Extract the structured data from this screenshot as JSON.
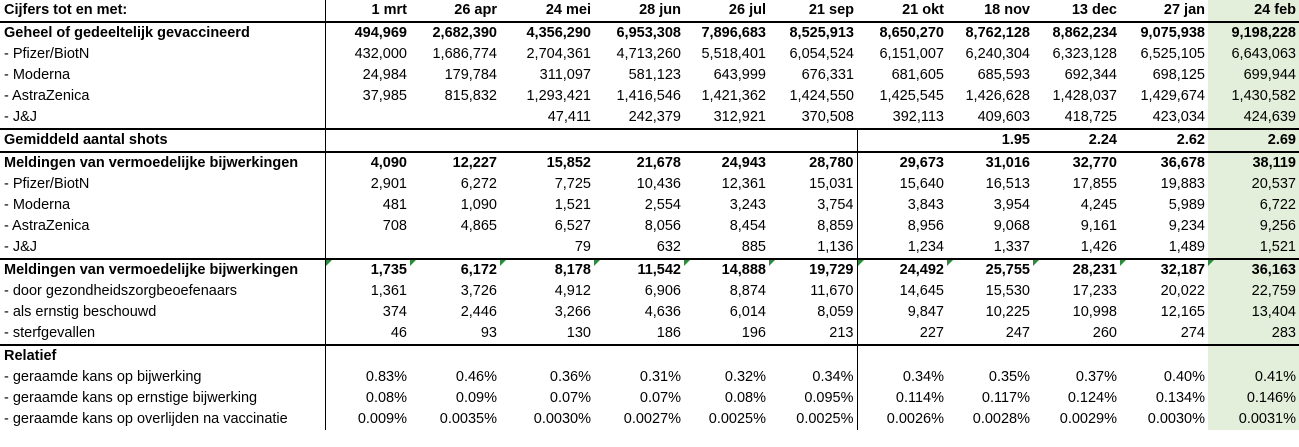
{
  "columns": [
    "Cijfers tot en met:",
    "1 mrt",
    "26 apr",
    "24 mei",
    "28 jun",
    "26 jul",
    "21 sep",
    "21 okt",
    "18 nov",
    "13 dec",
    "27 jan",
    "24 feb"
  ],
  "colors": {
    "highlight": "#e3efda",
    "comment_marker": "#2e8b3d"
  },
  "rows": [
    {
      "label": "Geheel of gedeeltelijk gevaccineerd",
      "values": [
        "494,969",
        "2,682,390",
        "4,356,290",
        "6,953,308",
        "7,896,683",
        "8,525,913",
        "8,650,270",
        "8,762,128",
        "8,862,234",
        "9,075,938",
        "9,198,228"
      ]
    },
    {
      "label": "- Pfizer/BiotN",
      "values": [
        "432,000",
        "1,686,774",
        "2,704,361",
        "4,713,260",
        "5,518,401",
        "6,054,524",
        "6,151,007",
        "6,240,304",
        "6,323,128",
        "6,525,105",
        "6,643,063"
      ]
    },
    {
      "label": "- Moderna",
      "values": [
        "24,984",
        "179,784",
        "311,097",
        "581,123",
        "643,999",
        "676,331",
        "681,605",
        "685,593",
        "692,344",
        "698,125",
        "699,944"
      ]
    },
    {
      "label": "- AstraZenica",
      "values": [
        "37,985",
        "815,832",
        "1,293,421",
        "1,416,546",
        "1,421,362",
        "1,424,550",
        "1,425,545",
        "1,426,628",
        "1,428,037",
        "1,429,674",
        "1,430,582"
      ]
    },
    {
      "label": "- J&J",
      "values": [
        "",
        "",
        "47,411",
        "242,379",
        "312,921",
        "370,508",
        "392,113",
        "409,603",
        "418,725",
        "423,034",
        "424,639"
      ]
    },
    {
      "label": "Gemiddeld aantal shots",
      "values": [
        "",
        "",
        "",
        "",
        "",
        "",
        "",
        "1.95",
        "2.24",
        "2.62",
        "2.69"
      ]
    },
    {
      "label": "Meldingen van vermoedelijke bijwerkingen",
      "values": [
        "4,090",
        "12,227",
        "15,852",
        "21,678",
        "24,943",
        "28,780",
        "29,673",
        "31,016",
        "32,770",
        "36,678",
        "38,119"
      ]
    },
    {
      "label": "- Pfizer/BiotN",
      "values": [
        "2,901",
        "6,272",
        "7,725",
        "10,436",
        "12,361",
        "15,031",
        "15,640",
        "16,513",
        "17,855",
        "19,883",
        "20,537"
      ]
    },
    {
      "label": "- Moderna",
      "values": [
        "481",
        "1,090",
        "1,521",
        "2,554",
        "3,243",
        "3,754",
        "3,843",
        "3,954",
        "4,245",
        "5,989",
        "6,722"
      ]
    },
    {
      "label": "- AstraZenica",
      "values": [
        "708",
        "4,865",
        "6,527",
        "8,056",
        "8,454",
        "8,859",
        "8,956",
        "9,068",
        "9,161",
        "9,234",
        "9,256"
      ]
    },
    {
      "label": "- J&J",
      "values": [
        "",
        "",
        "79",
        "632",
        "885",
        "1,136",
        "1,234",
        "1,337",
        "1,426",
        "1,489",
        "1,521"
      ]
    },
    {
      "label": "Meldingen van vermoedelijke bijwerkingen",
      "values": [
        "1,735",
        "6,172",
        "8,178",
        "11,542",
        "14,888",
        "19,729",
        "24,492",
        "25,755",
        "28,231",
        "32,187",
        "36,163"
      ]
    },
    {
      "label": "- door gezondheidszorgbeoefenaars",
      "values": [
        "1,361",
        "3,726",
        "4,912",
        "6,906",
        "8,874",
        "11,670",
        "14,645",
        "15,530",
        "17,233",
        "20,022",
        "22,759"
      ]
    },
    {
      "label": "- als ernstig beschouwd",
      "values": [
        "374",
        "2,446",
        "3,266",
        "4,636",
        "6,014",
        "8,059",
        "9,847",
        "10,225",
        "10,998",
        "12,165",
        "13,404"
      ]
    },
    {
      "label": "- sterfgevallen",
      "values": [
        "46",
        "93",
        "130",
        "186",
        "196",
        "213",
        "227",
        "247",
        "260",
        "274",
        "283"
      ]
    },
    {
      "label": "Relatief",
      "values": [
        "",
        "",
        "",
        "",
        "",
        "",
        "",
        "",
        "",
        "",
        ""
      ]
    },
    {
      "label": "- geraamde kans op bijwerking",
      "values": [
        "0.83%",
        "0.46%",
        "0.36%",
        "0.31%",
        "0.32%",
        "0.34%",
        "0.34%",
        "0.35%",
        "0.37%",
        "0.40%",
        "0.41%"
      ]
    },
    {
      "label": "- geraamde kans op ernstige bijwerking",
      "values": [
        "0.08%",
        "0.09%",
        "0.07%",
        "0.07%",
        "0.08%",
        "0.095%",
        "0.114%",
        "0.117%",
        "0.124%",
        "0.134%",
        "0.146%"
      ]
    },
    {
      "label": "- geraamde kans op overlijden na vaccinatie",
      "values": [
        "0.009%",
        "0.0035%",
        "0.0030%",
        "0.0027%",
        "0.0025%",
        "0.0025%",
        "0.0026%",
        "0.0028%",
        "0.0029%",
        "0.0030%",
        "0.0031%"
      ]
    }
  ]
}
